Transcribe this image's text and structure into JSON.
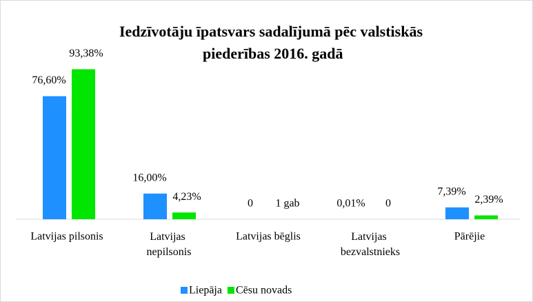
{
  "chart_data": {
    "type": "bar",
    "title": "Iedzīvotāju īpatsvars sadalījumā pēc valstiskās piederības 2016. gadā",
    "categories": [
      "Latvijas pilsonis",
      "Latvijas nepilsonis",
      "Latvijas bēglis",
      "Latvijas bezvalstnieks",
      "Pārējie"
    ],
    "series": [
      {
        "name": "Liepāja",
        "color": "#1e90ff",
        "values": [
          76.6,
          16.0,
          0,
          0.01,
          7.39
        ],
        "value_labels": [
          "76,60%",
          "16,00%",
          "0",
          "0,01%",
          "7,39%"
        ]
      },
      {
        "name": "Cēsu novads",
        "color": "#00e600",
        "values": [
          93.38,
          4.23,
          null,
          0,
          2.39
        ],
        "value_labels": [
          "93,38%",
          "4,23%",
          "1 gab",
          "0",
          "2,39%"
        ]
      }
    ],
    "ylim": [
      0,
      100
    ]
  }
}
